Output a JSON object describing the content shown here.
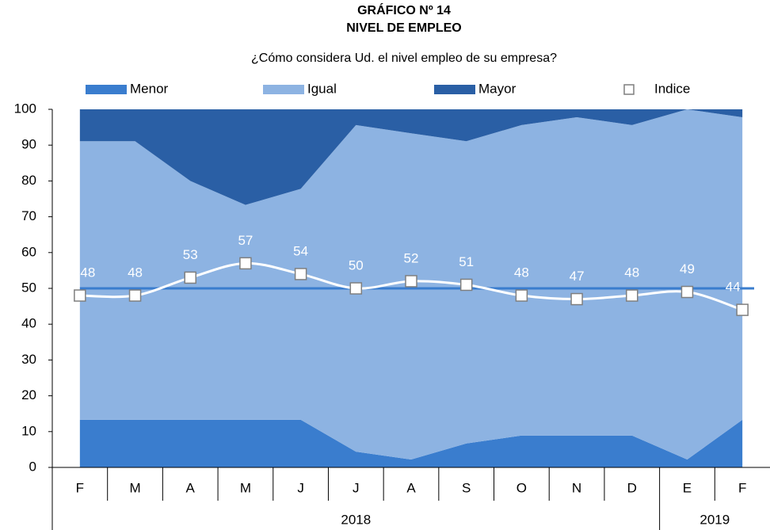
{
  "chart_data": {
    "type": "area",
    "title": "GRÁFICO Nº 14",
    "subtitle": "NIVEL DE EMPLEO",
    "question": "¿Cómo considera Ud. el nivel empleo de su empresa?",
    "categories": [
      "F",
      "M",
      "A",
      "M",
      "J",
      "J",
      "A",
      "S",
      "O",
      "N",
      "D",
      "E",
      "F"
    ],
    "years": [
      "2018",
      "2018",
      "2018",
      "2018",
      "2018",
      "2018",
      "2018",
      "2018",
      "2018",
      "2018",
      "2018",
      "2019",
      "2019"
    ],
    "series": [
      {
        "name": "Menor",
        "kind": "area",
        "color": "#3a7dce",
        "values": [
          13.3,
          13.3,
          13.3,
          13.3,
          13.3,
          4.4,
          2.2,
          6.7,
          8.9,
          8.9,
          8.9,
          2.2,
          13.3
        ]
      },
      {
        "name": "Igual",
        "kind": "area",
        "color": "#8db3e2",
        "values": [
          77.8,
          77.8,
          66.7,
          60,
          64.5,
          91.2,
          91.1,
          84.4,
          86.7,
          88.9,
          86.7,
          97.8,
          84.5
        ]
      },
      {
        "name": "Mayor",
        "kind": "area",
        "color": "#2a5fa5",
        "values": [
          8.9,
          8.9,
          20,
          26.7,
          22.2,
          4.4,
          6.7,
          8.9,
          4.4,
          2.2,
          4.4,
          0,
          2.2
        ]
      },
      {
        "name": "Indice",
        "kind": "line",
        "color": "#ffffff",
        "values": [
          48,
          48,
          53,
          57,
          54,
          50,
          52,
          51,
          48,
          47,
          48,
          49,
          44
        ]
      }
    ],
    "reference_line": 50,
    "reference_color": "#3a7dce",
    "ylim": [
      0,
      100
    ],
    "yticks": [
      0,
      10,
      20,
      30,
      40,
      50,
      60,
      70,
      80,
      90,
      100
    ]
  }
}
